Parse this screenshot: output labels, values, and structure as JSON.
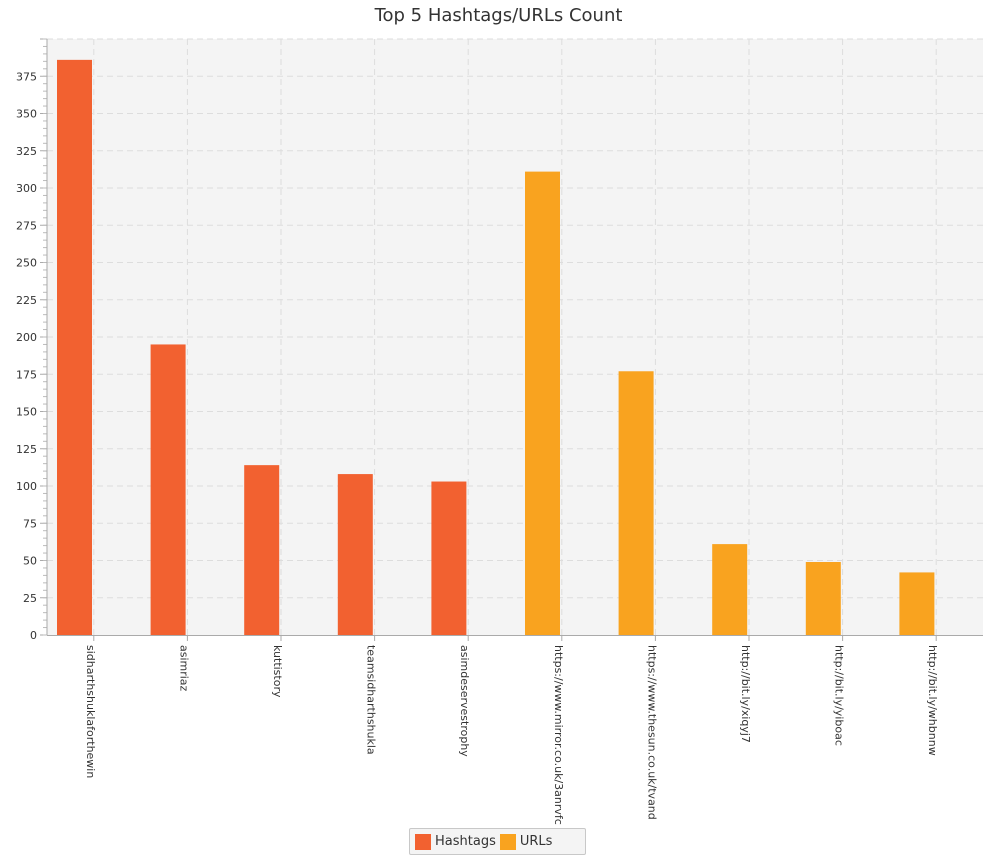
{
  "chart_data": {
    "type": "bar",
    "title": "Top 5 Hashtags/URLs Count",
    "xlabel": "",
    "ylabel": "",
    "ylim": [
      0,
      400
    ],
    "ytick_step": 25,
    "grid": true,
    "legend_position": "bottom-center",
    "categories": [
      "sidharthshuklaforthewin",
      "asimriaz",
      "kuttistory",
      "teamsidharthshukla",
      "asimdeservestrophy",
      "https://www.mirror.co.uk/3anrvfc",
      "https://www.thesun.co.uk/tvand",
      "http://bit.ly/xiqyj7",
      "http://bit.ly/yiboac",
      "http://bit.ly/whbnnw"
    ],
    "series": [
      {
        "name": "Hashtags",
        "color": "#f26130",
        "values": [
          386,
          195,
          114,
          108,
          103,
          null,
          null,
          null,
          null,
          null
        ]
      },
      {
        "name": "URLs",
        "color": "#f9a31f",
        "values": [
          null,
          null,
          null,
          null,
          null,
          311,
          177,
          61,
          49,
          42
        ]
      }
    ]
  }
}
